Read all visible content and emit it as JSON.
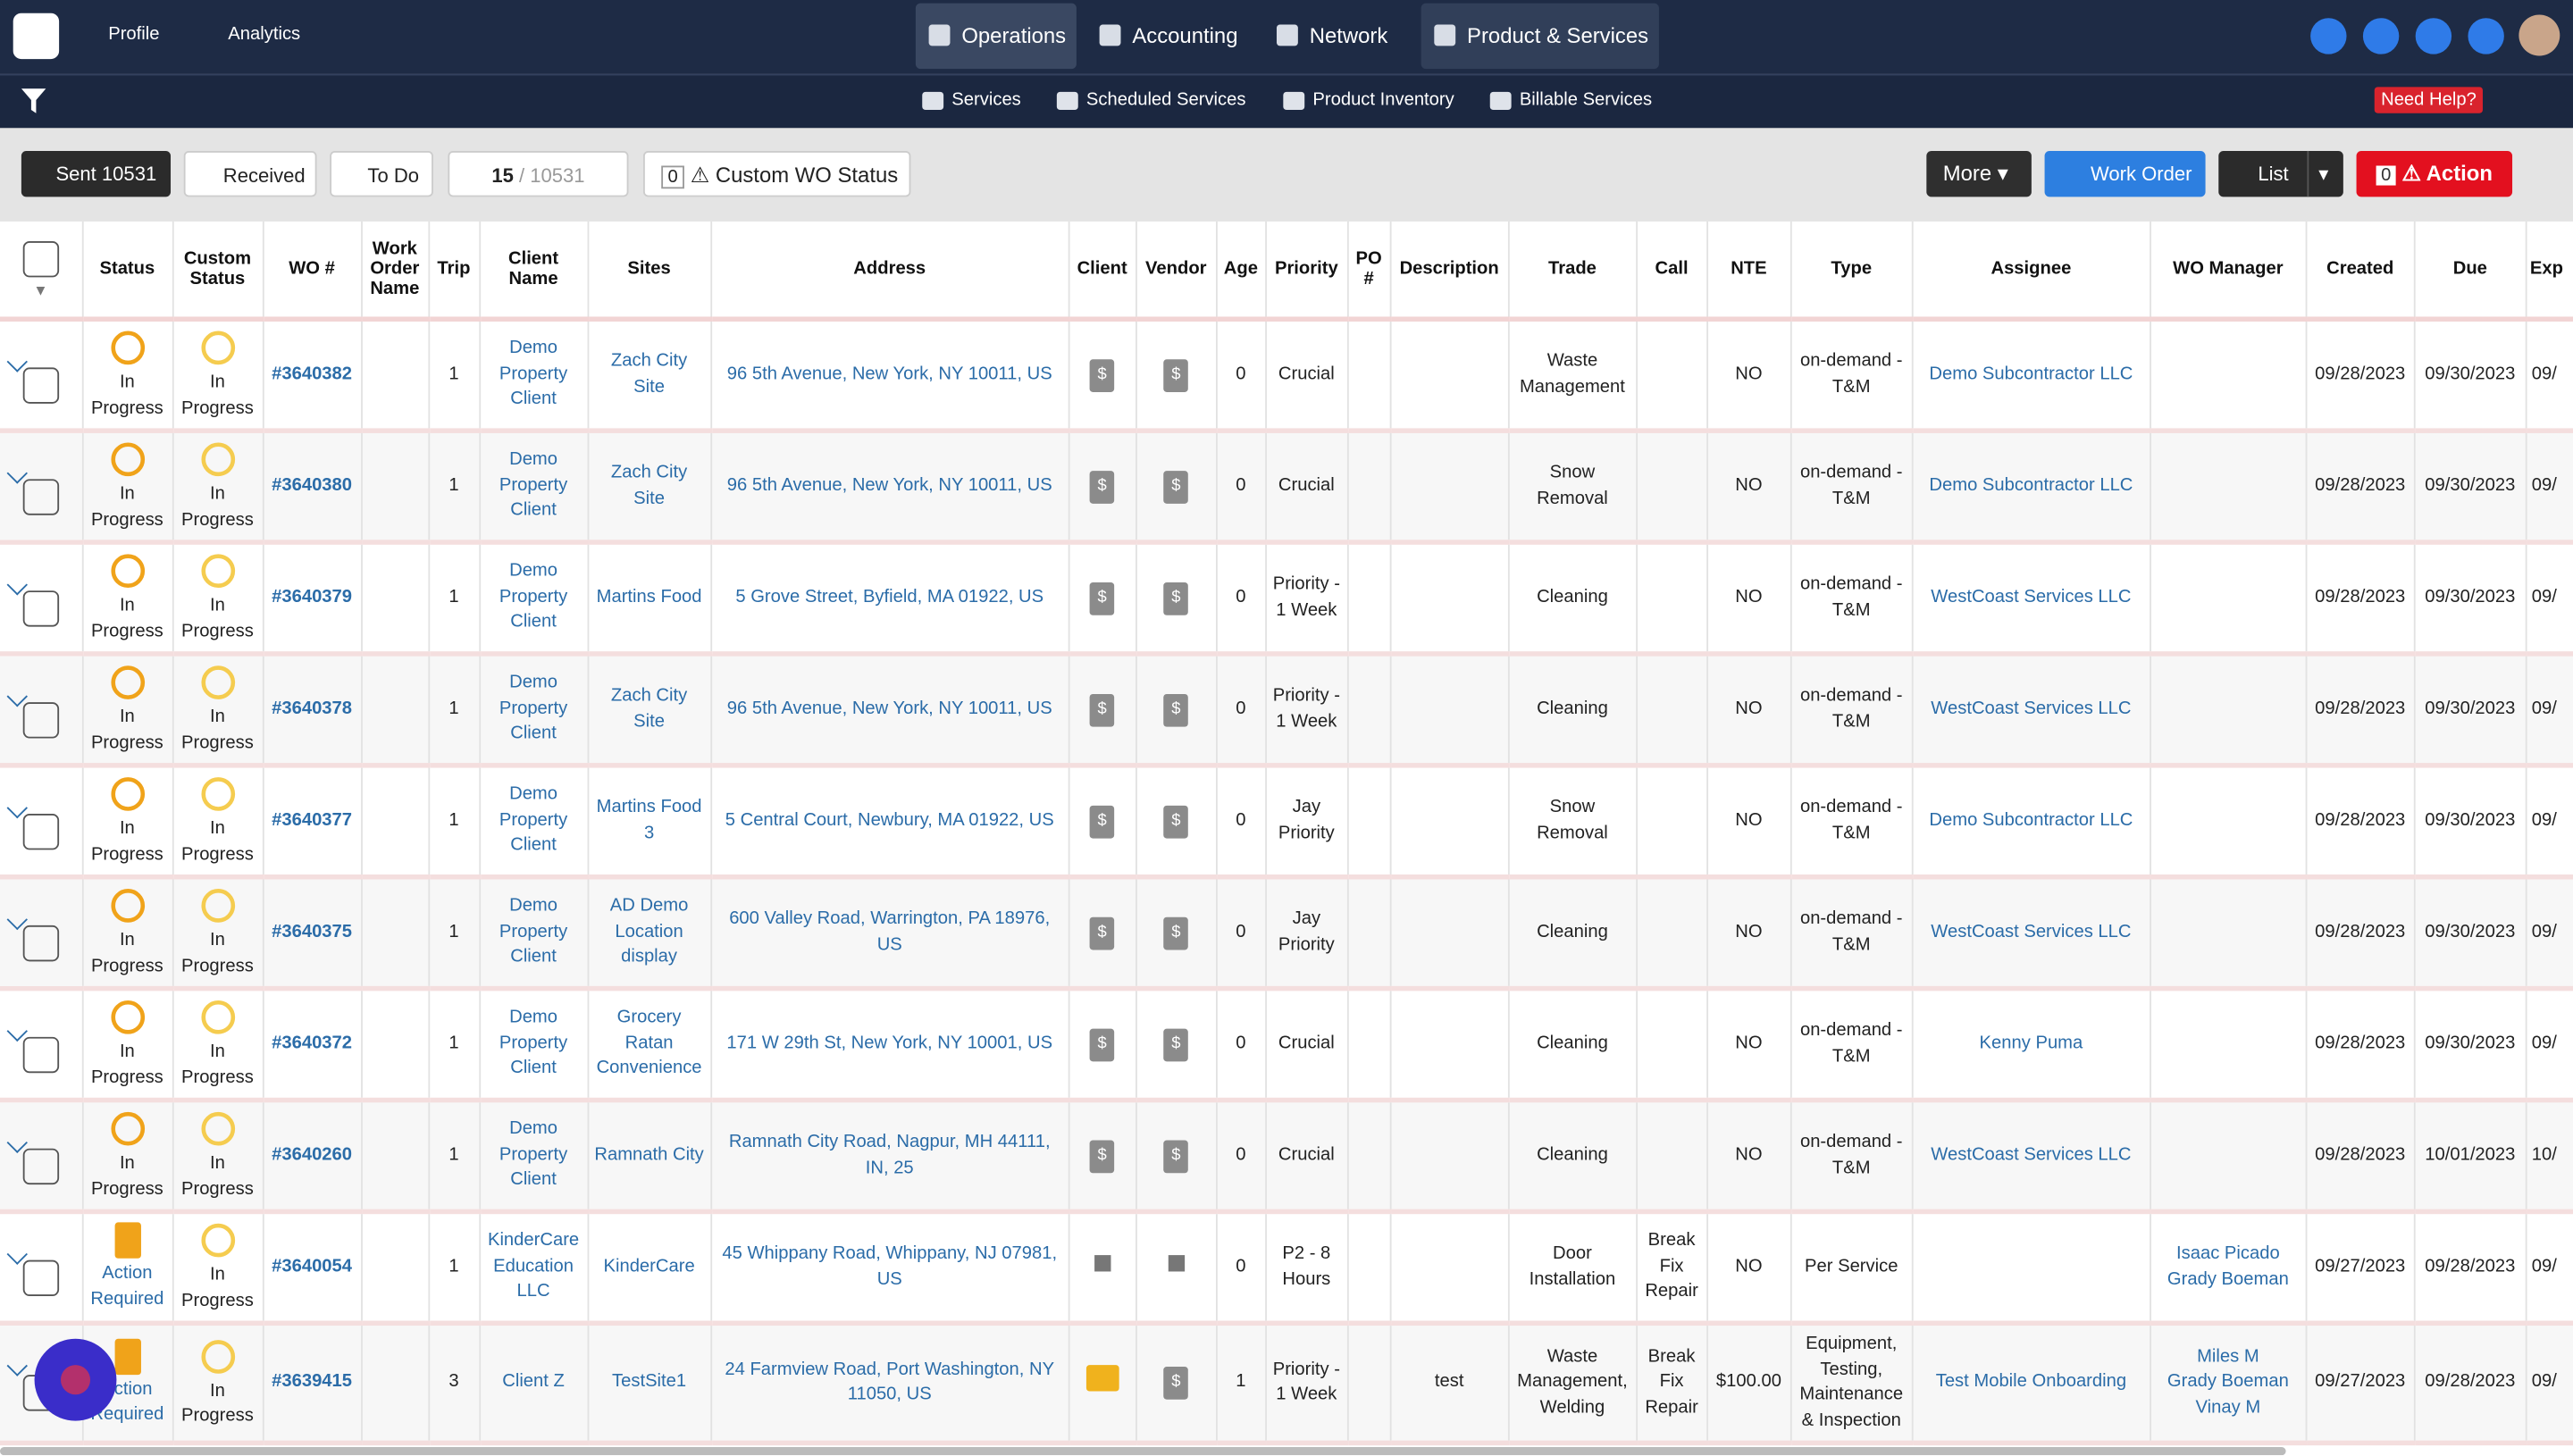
{
  "nav": {
    "items": [
      "Profile",
      "Analytics"
    ],
    "tabs": [
      "Operations",
      "Accounting",
      "Network",
      "Product & Services"
    ]
  },
  "subnav": {
    "items": [
      "Services",
      "Scheduled Services",
      "Product Inventory",
      "Billable Services"
    ],
    "help": "Need Help?"
  },
  "toolbar": {
    "sent": "Sent 10531",
    "received": "Received",
    "todo": "To Do",
    "page": "15",
    "total": "/ 10531",
    "custom_count": "0",
    "custom": "Custom WO Status",
    "more": "More",
    "work_order": "Work Order",
    "list": "List",
    "action_count": "0",
    "action": "Action"
  },
  "table": {
    "headers": [
      "Status",
      "Custom Status",
      "WO #",
      "Work Order Name",
      "Trip",
      "Client Name",
      "Sites",
      "Address",
      "Client",
      "Vendor",
      "Age",
      "Priority",
      "PO #",
      "Description",
      "Trade",
      "Call",
      "NTE",
      "Type",
      "Assignee",
      "WO Manager",
      "Created",
      "Due",
      "Exp"
    ],
    "rows": [
      {
        "status": "In Progress",
        "custom": "In Progress",
        "wo": "#3640382",
        "trip": "1",
        "client": "Demo Property Client",
        "site": "Zach City Site",
        "address": "96 5th Avenue, New York, NY 10011, US",
        "age": "0",
        "priority": "Crucial",
        "trade": "Waste Management",
        "nte": "NO",
        "type": "on-demand - T&M",
        "assignee": "Demo Subcontractor LLC",
        "created": "09/28/2023",
        "due": "09/30/2023",
        "exp": "09/"
      },
      {
        "status": "In Progress",
        "custom": "In Progress",
        "wo": "#3640380",
        "trip": "1",
        "client": "Demo Property Client",
        "site": "Zach City Site",
        "address": "96 5th Avenue, New York, NY 10011, US",
        "age": "0",
        "priority": "Crucial",
        "trade": "Snow Removal",
        "nte": "NO",
        "type": "on-demand - T&M",
        "assignee": "Demo Subcontractor LLC",
        "created": "09/28/2023",
        "due": "09/30/2023",
        "exp": "09/"
      },
      {
        "status": "In Progress",
        "custom": "In Progress",
        "wo": "#3640379",
        "trip": "1",
        "client": "Demo Property Client",
        "site": "Martins Food",
        "address": "5 Grove Street, Byfield, MA 01922, US",
        "age": "0",
        "priority": "Priority - 1 Week",
        "trade": "Cleaning",
        "nte": "NO",
        "type": "on-demand - T&M",
        "assignee": "WestCoast Services LLC",
        "created": "09/28/2023",
        "due": "09/30/2023",
        "exp": "09/"
      },
      {
        "status": "In Progress",
        "custom": "In Progress",
        "wo": "#3640378",
        "trip": "1",
        "client": "Demo Property Client",
        "site": "Zach City Site",
        "address": "96 5th Avenue, New York, NY 10011, US",
        "age": "0",
        "priority": "Priority - 1 Week",
        "trade": "Cleaning",
        "nte": "NO",
        "type": "on-demand - T&M",
        "assignee": "WestCoast Services LLC",
        "created": "09/28/2023",
        "due": "09/30/2023",
        "exp": "09/"
      },
      {
        "status": "In Progress",
        "custom": "In Progress",
        "wo": "#3640377",
        "trip": "1",
        "client": "Demo Property Client",
        "site": "Martins Food 3",
        "address": "5 Central Court, Newbury, MA 01922, US",
        "age": "0",
        "priority": "Jay Priority",
        "trade": "Snow Removal",
        "nte": "NO",
        "type": "on-demand - T&M",
        "assignee": "Demo Subcontractor LLC",
        "created": "09/28/2023",
        "due": "09/30/2023",
        "exp": "09/"
      },
      {
        "status": "In Progress",
        "custom": "In Progress",
        "wo": "#3640375",
        "trip": "1",
        "client": "Demo Property Client",
        "site": "AD Demo Location display",
        "address": "600 Valley Road, Warrington, PA 18976, US",
        "age": "0",
        "priority": "Jay Priority",
        "trade": "Cleaning",
        "nte": "NO",
        "type": "on-demand - T&M",
        "assignee": "WestCoast Services LLC",
        "created": "09/28/2023",
        "due": "09/30/2023",
        "exp": "09/"
      },
      {
        "status": "In Progress",
        "custom": "In Progress",
        "wo": "#3640372",
        "trip": "1",
        "client": "Demo Property Client",
        "site": "Grocery Ratan Convenience",
        "address": "171 W 29th St, New York, NY 10001, US",
        "age": "0",
        "priority": "Crucial",
        "trade": "Cleaning",
        "nte": "NO",
        "type": "on-demand - T&M",
        "assignee": "Kenny Puma",
        "created": "09/28/2023",
        "due": "09/30/2023",
        "exp": "09/"
      },
      {
        "status": "In Progress",
        "custom": "In Progress",
        "wo": "#3640260",
        "trip": "1",
        "client": "Demo Property Client",
        "site": "Ramnath City",
        "address": "Ramnath City Road, Nagpur, MH 44111, IN, 25",
        "age": "0",
        "priority": "Crucial",
        "trade": "Cleaning",
        "nte": "NO",
        "type": "on-demand - T&M",
        "assignee": "WestCoast Services LLC",
        "created": "09/28/2023",
        "due": "10/01/2023",
        "exp": "10/"
      },
      {
        "status": "Action Required",
        "custom": "In Progress",
        "wo": "#3640054",
        "trip": "1",
        "client": "KinderCare Education LLC",
        "site": "KinderCare",
        "address": "45 Whippany Road, Whippany, NJ 07981, US",
        "age": "0",
        "priority": "P2 - 8 Hours",
        "trade": "Door Installation",
        "call": "Break Fix Repair",
        "nte": "NO",
        "type": "Per Service",
        "manager": [
          "Isaac Picado",
          "Grady Boeman"
        ],
        "created": "09/27/2023",
        "due": "09/28/2023",
        "exp": "09/"
      },
      {
        "status": "Action Required",
        "custom": "In Progress",
        "wo": "#3639415",
        "trip": "3",
        "client": "Client Z",
        "site": "TestSite1",
        "address": "24 Farmview Road, Port Washington, NY 11050, US",
        "age": "1",
        "priority": "Priority - 1 Week",
        "description": "test",
        "trade": "Waste Management, Welding",
        "call": "Break Fix Repair",
        "nte": "$100.00",
        "type": "Equipment, Testing, Maintenance & Inspection",
        "assignee": "Test Mobile Onboarding",
        "manager": [
          "Miles M",
          "Grady Boeman",
          "Vinay M"
        ],
        "created": "09/27/2023",
        "due": "09/28/2023",
        "exp": "09/"
      }
    ]
  }
}
